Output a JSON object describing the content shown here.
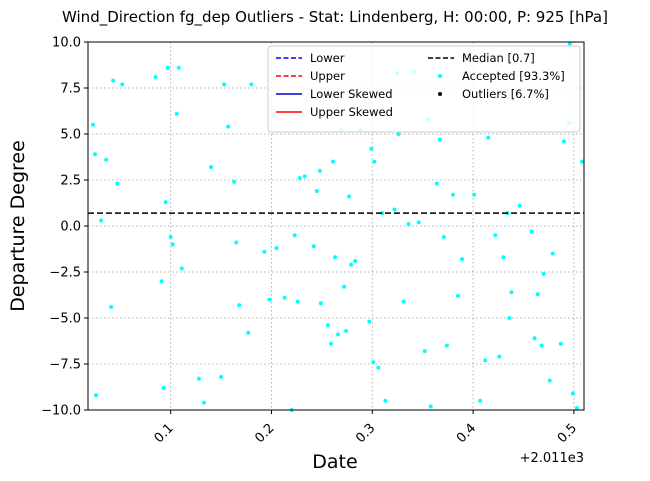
{
  "chart_data": {
    "type": "scatter",
    "title": "Wind_Direction fg_dep Outliers - Stat: Lindenberg, H: 00:00, P: 925 [hPa]",
    "xlabel": "Date",
    "ylabel": "Departure Degree",
    "x_offset_label": "+2.011e3",
    "xlim": [
      0.018,
      0.51
    ],
    "ylim": [
      -10.0,
      10.0
    ],
    "xticks": [
      0.1,
      0.2,
      0.3,
      0.4,
      0.5
    ],
    "xtick_labels": [
      "0.1",
      "0.2",
      "0.3",
      "0.4",
      "0.5"
    ],
    "yticks": [
      -10.0,
      -7.5,
      -5.0,
      -2.5,
      0.0,
      2.5,
      5.0,
      7.5,
      10.0
    ],
    "ytick_labels": [
      "−10.0",
      "−7.5",
      "−5.0",
      "−2.5",
      "0.0",
      "2.5",
      "5.0",
      "7.5",
      "10.0"
    ],
    "grid": true,
    "legend_placement": "top-right",
    "colors": {
      "accepted": "#00ffff",
      "outliers": "#000000",
      "median": "#000000",
      "lower": "#0000ff",
      "upper": "#ff0000",
      "lower_skewed": "#0000cc",
      "upper_skewed": "#ff0000"
    },
    "legend": [
      {
        "key": "lower",
        "label": "Lower",
        "style": "dashed-line",
        "color": "#0000ff"
      },
      {
        "key": "median",
        "label": "Median [0.7]",
        "style": "dashed-line",
        "color": "#000000"
      },
      {
        "key": "upper",
        "label": "Upper",
        "style": "dashed-line",
        "color": "#ff0000"
      },
      {
        "key": "accepted",
        "label": "Accepted [93.3%]",
        "style": "marker",
        "color": "#00ffff"
      },
      {
        "key": "lower_skewed",
        "label": "Lower Skewed",
        "style": "solid-line",
        "color": "#0000cc"
      },
      {
        "key": "outliers",
        "label": "Outliers [6.7%]",
        "style": "marker",
        "color": "#000000"
      },
      {
        "key": "upper_skewed",
        "label": "Upper Skewed",
        "style": "solid-line",
        "color": "#ff0000"
      }
    ],
    "median": 0.7,
    "series": [
      {
        "name": "Accepted [93.3%]",
        "color": "#00ffff",
        "points": [
          [
            0.023,
            5.5
          ],
          [
            0.025,
            3.9
          ],
          [
            0.026,
            -9.2
          ],
          [
            0.031,
            0.3
          ],
          [
            0.036,
            3.6
          ],
          [
            0.041,
            -4.4
          ],
          [
            0.043,
            7.9
          ],
          [
            0.047,
            2.3
          ],
          [
            0.052,
            7.7
          ],
          [
            0.085,
            8.1
          ],
          [
            0.091,
            -3.0
          ],
          [
            0.093,
            -8.8
          ],
          [
            0.095,
            1.3
          ],
          [
            0.097,
            8.6
          ],
          [
            0.1,
            -0.6
          ],
          [
            0.102,
            -1.0
          ],
          [
            0.106,
            6.1
          ],
          [
            0.108,
            8.6
          ],
          [
            0.111,
            -2.3
          ],
          [
            0.128,
            -8.3
          ],
          [
            0.133,
            -9.6
          ],
          [
            0.14,
            3.2
          ],
          [
            0.15,
            -8.2
          ],
          [
            0.153,
            7.7
          ],
          [
            0.157,
            5.4
          ],
          [
            0.163,
            2.4
          ],
          [
            0.165,
            -0.9
          ],
          [
            0.168,
            -4.3
          ],
          [
            0.177,
            -5.8
          ],
          [
            0.18,
            7.7
          ],
          [
            0.193,
            -1.4
          ],
          [
            0.198,
            -4.0
          ],
          [
            0.205,
            -1.2
          ],
          [
            0.213,
            -3.9
          ],
          [
            0.22,
            -10.0
          ],
          [
            0.223,
            -0.5
          ],
          [
            0.226,
            -4.1
          ],
          [
            0.228,
            2.6
          ],
          [
            0.233,
            2.7
          ],
          [
            0.242,
            -1.1
          ],
          [
            0.245,
            1.9
          ],
          [
            0.248,
            3.0
          ],
          [
            0.249,
            -4.2
          ],
          [
            0.256,
            -5.4
          ],
          [
            0.259,
            -6.4
          ],
          [
            0.261,
            3.5
          ],
          [
            0.263,
            -1.7
          ],
          [
            0.266,
            -5.9
          ],
          [
            0.269,
            5.2
          ],
          [
            0.272,
            -3.3
          ],
          [
            0.274,
            -5.7
          ],
          [
            0.277,
            1.6
          ],
          [
            0.279,
            -2.1
          ],
          [
            0.283,
            -1.9
          ],
          [
            0.288,
            5.2
          ],
          [
            0.297,
            -5.2
          ],
          [
            0.299,
            4.2
          ],
          [
            0.301,
            -7.4
          ],
          [
            0.302,
            3.5
          ],
          [
            0.306,
            -7.7
          ],
          [
            0.31,
            0.7
          ],
          [
            0.313,
            -9.5
          ],
          [
            0.322,
            0.9
          ],
          [
            0.326,
            5.0
          ],
          [
            0.331,
            -4.1
          ],
          [
            0.336,
            0.1
          ],
          [
            0.341,
            8.4
          ],
          [
            0.346,
            0.2
          ],
          [
            0.352,
            -6.8
          ],
          [
            0.358,
            -9.8
          ],
          [
            0.364,
            2.3
          ],
          [
            0.367,
            4.7
          ],
          [
            0.371,
            -0.6
          ],
          [
            0.374,
            -6.5
          ],
          [
            0.38,
            1.7
          ],
          [
            0.385,
            -3.8
          ],
          [
            0.389,
            -1.8
          ],
          [
            0.401,
            1.7
          ],
          [
            0.407,
            -9.5
          ],
          [
            0.412,
            -7.3
          ],
          [
            0.415,
            4.8
          ],
          [
            0.422,
            -0.5
          ],
          [
            0.426,
            -7.1
          ],
          [
            0.43,
            -1.7
          ],
          [
            0.434,
            0.7
          ],
          [
            0.436,
            -5.0
          ],
          [
            0.438,
            -3.6
          ],
          [
            0.446,
            1.1
          ],
          [
            0.458,
            -0.3
          ],
          [
            0.461,
            -6.1
          ],
          [
            0.464,
            -3.7
          ],
          [
            0.468,
            -6.5
          ],
          [
            0.47,
            -2.6
          ],
          [
            0.476,
            -8.4
          ],
          [
            0.479,
            -1.5
          ],
          [
            0.487,
            -6.4
          ],
          [
            0.49,
            4.6
          ],
          [
            0.496,
            9.9
          ],
          [
            0.499,
            -9.1
          ],
          [
            0.503,
            -9.9
          ],
          [
            0.508,
            3.5
          ],
          [
            0.495,
            5.6
          ],
          [
            0.325,
            8.3
          ],
          [
            0.355,
            5.8
          ]
        ]
      },
      {
        "name": "Outliers [6.7%]",
        "color": "#000000",
        "points": []
      }
    ]
  }
}
